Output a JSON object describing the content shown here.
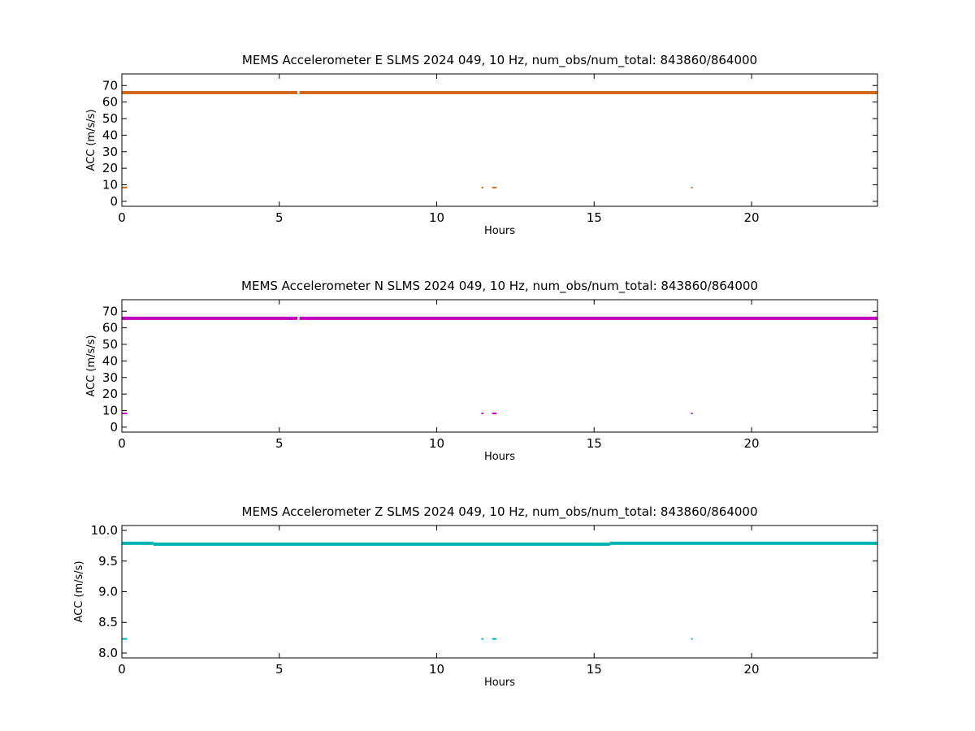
{
  "chart_data": [
    {
      "type": "scatter",
      "title": "MEMS Accelerometer E SLMS 2024 049, 10 Hz, num_obs/num_total: 843860/864000",
      "xlabel": "Hours",
      "ylabel": "ACC (m/s/s)",
      "xlim": [
        0,
        24
      ],
      "ylim": [
        -3,
        77
      ],
      "xticks": [
        0,
        5,
        10,
        15,
        20
      ],
      "yticks": [
        0,
        10,
        20,
        30,
        40,
        50,
        60,
        70
      ],
      "ytick_labels": [
        "0",
        "10",
        "20",
        "30",
        "40",
        "50",
        "60",
        "70"
      ],
      "grid": false,
      "color": "#d2691e",
      "series": [
        {
          "segments": [
            [
              0,
              5.58,
              65.7
            ],
            [
              5.64,
              24,
              65.7
            ]
          ]
        },
        {
          "segments": [
            [
              0.0,
              0.17,
              8.3
            ],
            [
              11.42,
              11.48,
              8.3
            ],
            [
              11.76,
              11.9,
              8.3
            ],
            [
              18.08,
              18.11,
              8.3
            ]
          ]
        }
      ]
    },
    {
      "type": "scatter",
      "title": "MEMS Accelerometer N SLMS 2024 049, 10 Hz, num_obs/num_total: 843860/864000",
      "xlabel": "Hours",
      "ylabel": "ACC (m/s/s)",
      "xlim": [
        0,
        24
      ],
      "ylim": [
        -3,
        77
      ],
      "xticks": [
        0,
        5,
        10,
        15,
        20
      ],
      "yticks": [
        0,
        10,
        20,
        30,
        40,
        50,
        60,
        70
      ],
      "ytick_labels": [
        "0",
        "10",
        "20",
        "30",
        "40",
        "50",
        "60",
        "70"
      ],
      "grid": false,
      "color": "#bf00bf",
      "series": [
        {
          "segments": [
            [
              0,
              5.58,
              65.8
            ],
            [
              5.64,
              24,
              65.8
            ]
          ]
        },
        {
          "segments": [
            [
              0.0,
              0.17,
              8.3
            ],
            [
              11.42,
              11.48,
              8.3
            ],
            [
              11.76,
              11.9,
              8.3
            ],
            [
              18.08,
              18.11,
              8.3
            ]
          ]
        }
      ]
    },
    {
      "type": "scatter",
      "title": "MEMS Accelerometer Z SLMS 2024 049, 10 Hz, num_obs/num_total: 843860/864000",
      "xlabel": "Hours",
      "ylabel": "ACC (m/s/s)",
      "xlim": [
        0,
        24
      ],
      "ylim": [
        7.92,
        10.08
      ],
      "xticks": [
        0,
        5,
        10,
        15,
        20
      ],
      "yticks": [
        8.0,
        8.5,
        9.0,
        9.5,
        10.0
      ],
      "ytick_labels": [
        "8.0",
        "8.5",
        "9.0",
        "9.5",
        "10.0"
      ],
      "grid": false,
      "color": "#00b4b4",
      "series": [
        {
          "segments": [
            [
              0,
              1.0,
              9.79
            ],
            [
              1.0,
              15.5,
              9.775
            ],
            [
              15.5,
              24,
              9.79
            ]
          ]
        },
        {
          "segments": [
            [
              0.0,
              0.17,
              8.23
            ],
            [
              11.42,
              11.48,
              8.23
            ],
            [
              11.76,
              11.9,
              8.23
            ],
            [
              18.08,
              18.11,
              8.23
            ]
          ]
        }
      ]
    }
  ]
}
